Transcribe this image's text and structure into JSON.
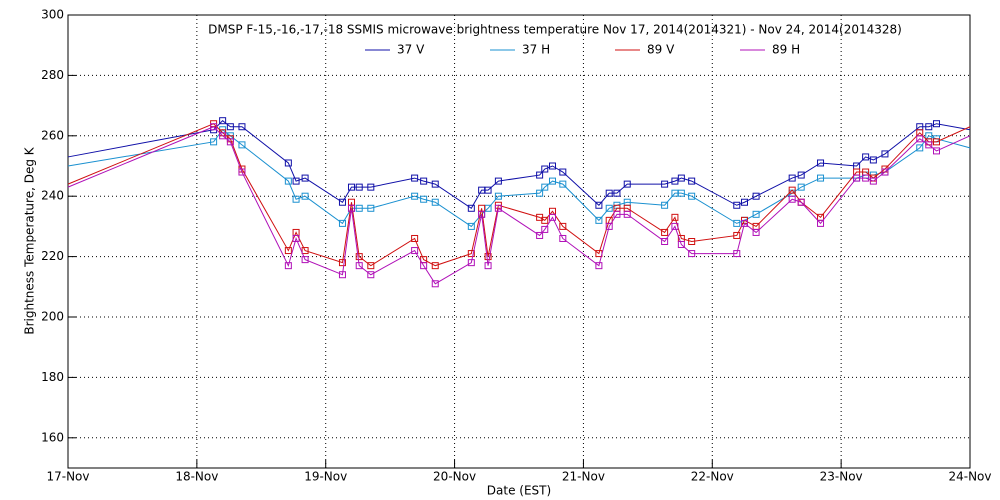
{
  "chart_data": {
    "type": "line",
    "title": "DMSP F-15,-16,-17,-18 SSMIS microwave brightness temperature Nov 17, 2014(2014321) - Nov 24, 2014(2014328)",
    "xlabel": "Date (EST)",
    "ylabel": "Brightness Temperature, Deg K",
    "x": [
      0,
      1.13,
      1.2,
      1.26,
      1.35,
      1.71,
      1.77,
      1.84,
      2.13,
      2.2,
      2.26,
      2.35,
      2.69,
      2.76,
      2.85,
      3.13,
      3.21,
      3.26,
      3.34,
      3.66,
      3.7,
      3.76,
      3.84,
      4.12,
      4.2,
      4.26,
      4.34,
      4.63,
      4.71,
      4.76,
      4.84,
      5.19,
      5.25,
      5.34,
      5.62,
      5.69,
      5.84,
      6.12,
      6.19,
      6.25,
      6.34,
      6.61,
      6.68,
      6.74,
      7
    ],
    "series": [
      {
        "name": "37 V",
        "color": "#1010a8",
        "values": [
          253,
          262,
          265,
          263,
          263,
          251,
          245,
          246,
          238,
          243,
          243,
          243,
          246,
          245,
          244,
          236,
          242,
          242,
          245,
          247,
          249,
          250,
          248,
          237,
          241,
          241,
          244,
          244,
          245,
          246,
          245,
          237,
          238,
          240,
          246,
          247,
          251,
          250,
          253,
          252,
          254,
          263,
          263,
          264,
          262
        ]
      },
      {
        "name": "37 H",
        "color": "#1a90d0",
        "values": [
          250,
          258,
          262,
          260,
          257,
          245,
          239,
          240,
          231,
          236,
          236,
          236,
          240,
          239,
          238,
          230,
          234,
          236,
          240,
          241,
          243,
          245,
          244,
          232,
          236,
          237,
          238,
          237,
          241,
          241,
          240,
          231,
          232,
          234,
          241,
          243,
          246,
          246,
          247,
          247,
          248,
          256,
          260,
          259,
          256
        ]
      },
      {
        "name": "89 V",
        "color": "#d01010",
        "values": [
          244,
          264,
          261,
          259,
          249,
          222,
          228,
          222,
          218,
          238,
          220,
          217,
          226,
          219,
          217,
          221,
          236,
          220,
          237,
          233,
          232,
          235,
          230,
          221,
          232,
          236,
          236,
          228,
          233,
          226,
          225,
          227,
          232,
          230,
          242,
          238,
          233,
          248,
          248,
          246,
          249,
          261,
          258,
          258,
          263
        ]
      },
      {
        "name": "89 H",
        "color": "#b010b8",
        "values": [
          243,
          263,
          260,
          258,
          248,
          217,
          226,
          219,
          214,
          236,
          217,
          214,
          222,
          217,
          211,
          218,
          234,
          217,
          236,
          227,
          229,
          233,
          226,
          217,
          230,
          234,
          234,
          225,
          230,
          224,
          221,
          221,
          231,
          228,
          239,
          238,
          231,
          246,
          246,
          245,
          248,
          259,
          257,
          255,
          260
        ]
      }
    ],
    "xlim": [
      0,
      7
    ],
    "xticks": [
      {
        "value": 0,
        "label": "17-Nov"
      },
      {
        "value": 1,
        "label": "18-Nov"
      },
      {
        "value": 2,
        "label": "19-Nov"
      },
      {
        "value": 3,
        "label": "20-Nov"
      },
      {
        "value": 4,
        "label": "21-Nov"
      },
      {
        "value": 5,
        "label": "22-Nov"
      },
      {
        "value": 6,
        "label": "23-Nov"
      },
      {
        "value": 7,
        "label": "24-Nov"
      }
    ],
    "ylim": [
      150,
      300
    ],
    "yticks": [
      160,
      180,
      200,
      220,
      240,
      260,
      280,
      300
    ],
    "grid": true
  }
}
